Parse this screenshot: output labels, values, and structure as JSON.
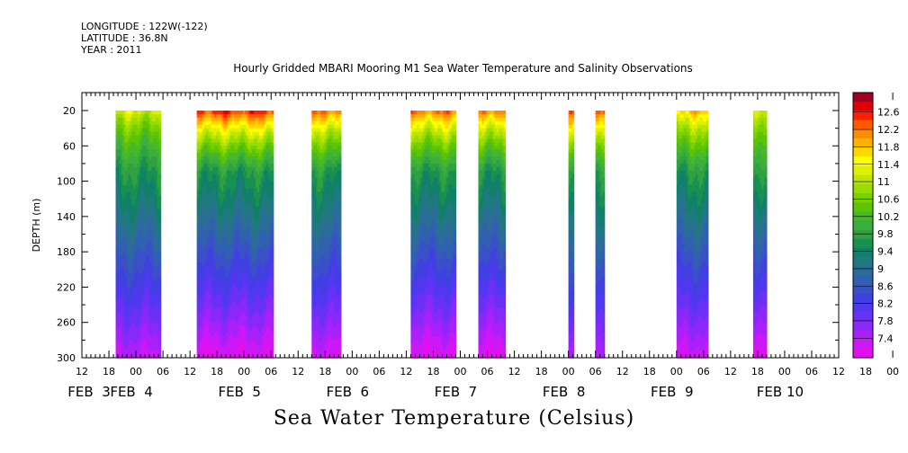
{
  "header": {
    "longitude": "LONGITUDE : 122W(-122)",
    "latitude": "LATITUDE : 36.8N",
    "year": "YEAR : 2011"
  },
  "chart_data": {
    "type": "heatmap",
    "title": "Hourly Gridded MBARI Mooring M1 Sea Water Temperature and Salinity Observations",
    "xlabel": "Sea Water Temperature (Celsius)",
    "ylabel": "DEPTH (m)",
    "x_range_hours": [
      12,
      180
    ],
    "x_unit": "hours after 2011-02-03 00:00",
    "x_hour_ticks": [
      "12",
      "18",
      "00",
      "06",
      "12",
      "18",
      "00",
      "06",
      "12",
      "18",
      "00",
      "06",
      "12",
      "18",
      "00",
      "06",
      "12",
      "18",
      "00",
      "06",
      "12",
      "18",
      "00",
      "06",
      "12",
      "18",
      "00",
      "06",
      "12",
      "18",
      "00",
      "06",
      "12"
    ],
    "x_day_labels": [
      "FEB  3",
      "FEB  4",
      "FEB  5",
      "FEB  6",
      "FEB  7",
      "FEB  8",
      "FEB  9",
      "FEB 10"
    ],
    "y_ticks": [
      20,
      60,
      100,
      140,
      180,
      220,
      260,
      300
    ],
    "y_range": [
      300,
      20
    ],
    "colorbar": {
      "labels": [
        "12.6",
        "12.2",
        "11.8",
        "11.4",
        "11",
        "10.6",
        "10.2",
        "9.8",
        "9.4",
        "9",
        "8.6",
        "8.2",
        "7.8",
        "7.4"
      ],
      "colors": [
        "#a00020",
        "#e00000",
        "#ff2000",
        "#ff5a00",
        "#ff8c00",
        "#ffb000",
        "#ffd800",
        "#ffff00",
        "#e0f000",
        "#bce600",
        "#98dc00",
        "#78d000",
        "#5cc400",
        "#48b828",
        "#3cae3c",
        "#30a040",
        "#189050",
        "#108068",
        "#207880",
        "#2c6c98",
        "#3060b0",
        "#3a50c8",
        "#4040e0",
        "#5038f0",
        "#6a30f8",
        "#8a28fa",
        "#aa20fa",
        "#cc18f6",
        "#e010f0"
      ],
      "min": 7.4,
      "max": 12.6
    },
    "data_segments": [
      {
        "start": 19.5,
        "end": 29.5,
        "surface": 11.1,
        "bottom": 7.7
      },
      {
        "start": 37.5,
        "end": 54.5,
        "surface": 12.3,
        "bottom": 7.5
      },
      {
        "start": 63.0,
        "end": 69.5,
        "surface": 12.0,
        "bottom": 7.6
      },
      {
        "start": 85.0,
        "end": 95.0,
        "surface": 12.0,
        "bottom": 7.5
      },
      {
        "start": 100.0,
        "end": 106.0,
        "surface": 12.0,
        "bottom": 7.5
      },
      {
        "start": 120.0,
        "end": 121.2,
        "surface": 12.0,
        "bottom": 7.7
      },
      {
        "start": 126.0,
        "end": 128.0,
        "surface": 12.0,
        "bottom": 7.7
      },
      {
        "start": 144.0,
        "end": 151.0,
        "surface": 11.6,
        "bottom": 7.6
      },
      {
        "start": 161.0,
        "end": 164.0,
        "surface": 11.0,
        "bottom": 7.4
      }
    ]
  }
}
